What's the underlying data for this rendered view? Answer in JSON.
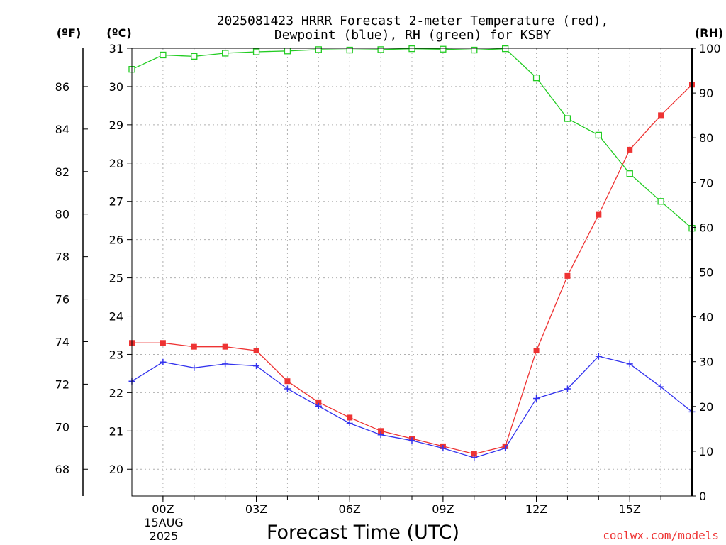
{
  "chart_data": {
    "type": "line",
    "title_line1": "2025081423 HRRR Forecast 2-meter Temperature (red),",
    "title_line2": "Dewpoint (blue), RH (green) for KSBY",
    "xlabel": "Forecast Time (UTC)",
    "unit_f": "(ºF)",
    "unit_c": "(ºC)",
    "unit_rh": "(RH)",
    "credit": "coolwx.com/models",
    "date_line1": "15AUG",
    "date_line2": "2025",
    "x_hours": [
      -1,
      0,
      1,
      2,
      3,
      4,
      5,
      6,
      7,
      8,
      9,
      10,
      11,
      12,
      13,
      14,
      15,
      16,
      17
    ],
    "x_ticks": [
      {
        "hour": 0,
        "label": "00Z"
      },
      {
        "hour": 3,
        "label": "03Z"
      },
      {
        "hour": 6,
        "label": "06Z"
      },
      {
        "hour": 9,
        "label": "09Z"
      },
      {
        "hour": 12,
        "label": "12Z"
      },
      {
        "hour": 15,
        "label": "15Z"
      }
    ],
    "xlim": [
      -1,
      17
    ],
    "c_ylim": [
      19.3,
      31
    ],
    "c_ticks": [
      "20",
      "21",
      "22",
      "23",
      "24",
      "25",
      "26",
      "27",
      "28",
      "29",
      "30",
      "31"
    ],
    "f_ticks": [
      "68",
      "70",
      "72",
      "74",
      "76",
      "78",
      "80",
      "82",
      "84",
      "86"
    ],
    "rh_ylim": [
      0,
      100
    ],
    "rh_ticks": [
      "0",
      "10",
      "20",
      "30",
      "40",
      "50",
      "60",
      "70",
      "80",
      "90",
      "100"
    ],
    "series": [
      {
        "key": "temperature",
        "color": "#ee3333",
        "marker": "filled-square",
        "axis": "c",
        "values": [
          23.3,
          23.3,
          23.2,
          23.2,
          23.1,
          22.3,
          21.75,
          21.35,
          21.0,
          20.8,
          20.6,
          20.4,
          20.6,
          23.1,
          25.05,
          26.65,
          28.35,
          29.25,
          30.05
        ]
      },
      {
        "key": "dewpoint",
        "color": "#3333ee",
        "marker": "plus",
        "axis": "c",
        "values": [
          22.3,
          22.8,
          22.65,
          22.75,
          22.7,
          22.1,
          21.65,
          21.2,
          20.9,
          20.75,
          20.55,
          20.3,
          20.55,
          21.85,
          22.1,
          22.95,
          22.75,
          22.15,
          21.5
        ]
      },
      {
        "key": "rh",
        "color": "#22cc22",
        "marker": "open-square",
        "axis": "rh",
        "values": [
          95.3,
          98.5,
          98.2,
          98.9,
          99.2,
          99.4,
          99.7,
          99.6,
          99.7,
          99.9,
          99.8,
          99.6,
          99.9,
          93.4,
          84.3,
          80.6,
          72.0,
          65.8,
          59.8
        ]
      }
    ]
  }
}
